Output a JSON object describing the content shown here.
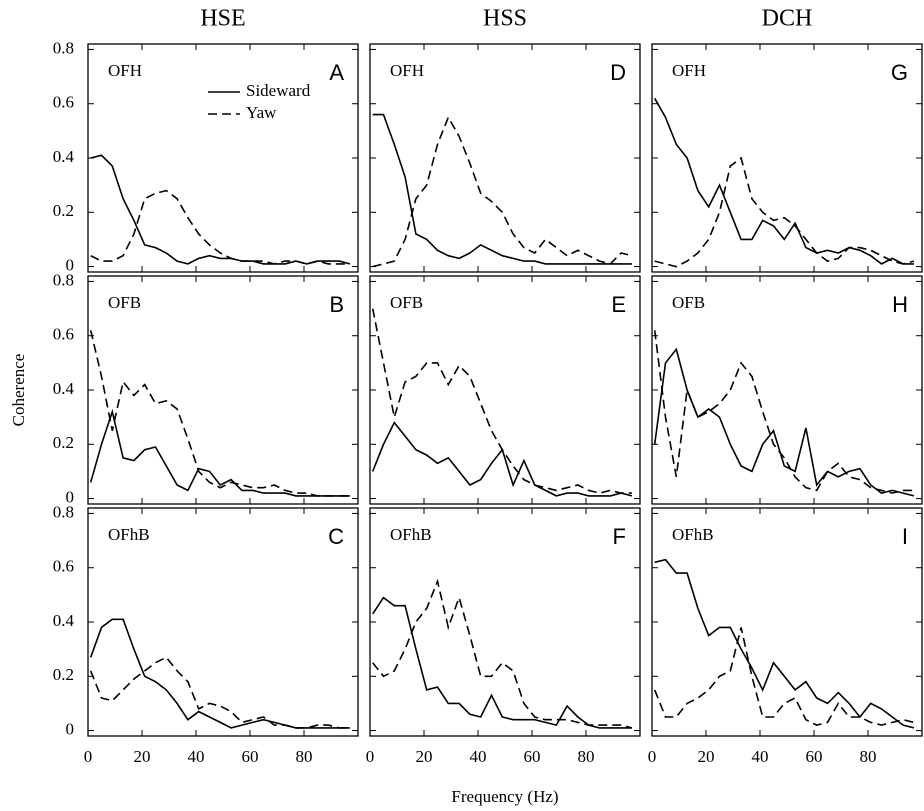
{
  "columns": [
    "HSE",
    "HSS",
    "DCH"
  ],
  "ylabel": "Coherence",
  "xlabel": "Frequency (Hz)",
  "chart_data": [
    {
      "type": "line",
      "label": "OFH",
      "panel": "A",
      "x": [
        1,
        5,
        9,
        13,
        17,
        21,
        25,
        29,
        33,
        37,
        41,
        45,
        49,
        53,
        57,
        61,
        65,
        69,
        73,
        77,
        81,
        85,
        89,
        93,
        97
      ],
      "xlim": [
        0,
        100
      ],
      "ylim": [
        -0.02,
        0.82
      ],
      "xticks": [
        0,
        20,
        40,
        60,
        80
      ],
      "yticks": [
        0,
        0.2,
        0.4,
        0.6,
        0.8
      ],
      "series": [
        {
          "name": "Sideward",
          "color": "#000000",
          "dash": "solid",
          "values": [
            0.4,
            0.41,
            0.37,
            0.25,
            0.17,
            0.08,
            0.07,
            0.05,
            0.02,
            0.01,
            0.03,
            0.04,
            0.03,
            0.03,
            0.02,
            0.02,
            0.01,
            0.01,
            0.01,
            0.02,
            0.01,
            0.02,
            0.02,
            0.02,
            0.01
          ]
        },
        {
          "name": "Yaw",
          "color": "#000000",
          "dash": "dashed",
          "values": [
            0.04,
            0.02,
            0.02,
            0.04,
            0.12,
            0.25,
            0.27,
            0.28,
            0.25,
            0.18,
            0.12,
            0.08,
            0.05,
            0.03,
            0.02,
            0.02,
            0.02,
            0.01,
            0.02,
            0.02,
            0.01,
            0.02,
            0.01,
            0.01,
            0.01
          ]
        }
      ]
    },
    {
      "type": "line",
      "label": "OFH",
      "panel": "D",
      "x": [
        1,
        5,
        9,
        13,
        17,
        21,
        25,
        29,
        33,
        37,
        41,
        45,
        49,
        53,
        57,
        61,
        65,
        69,
        73,
        77,
        81,
        85,
        89,
        93,
        97
      ],
      "xlim": [
        0,
        100
      ],
      "ylim": [
        -0.02,
        0.82
      ],
      "xticks": [
        0,
        20,
        40,
        60,
        80
      ],
      "yticks": [
        0,
        0.2,
        0.4,
        0.6,
        0.8
      ],
      "series": [
        {
          "color": "#000000",
          "dash": "solid",
          "values": [
            0.56,
            0.56,
            0.45,
            0.33,
            0.12,
            0.1,
            0.06,
            0.04,
            0.03,
            0.05,
            0.08,
            0.06,
            0.04,
            0.03,
            0.02,
            0.02,
            0.01,
            0.01,
            0.01,
            0.01,
            0.01,
            0.01,
            0.01,
            0.01,
            0.01
          ]
        },
        {
          "color": "#000000",
          "dash": "dashed",
          "values": [
            0.0,
            0.01,
            0.02,
            0.1,
            0.25,
            0.3,
            0.45,
            0.55,
            0.48,
            0.38,
            0.27,
            0.24,
            0.2,
            0.12,
            0.07,
            0.05,
            0.1,
            0.07,
            0.04,
            0.06,
            0.04,
            0.02,
            0.01,
            0.05,
            0.04
          ]
        }
      ]
    },
    {
      "type": "line",
      "label": "OFH",
      "panel": "G",
      "x": [
        1,
        5,
        9,
        13,
        17,
        21,
        25,
        29,
        33,
        37,
        41,
        45,
        49,
        53,
        57,
        61,
        65,
        69,
        73,
        77,
        81,
        85,
        89,
        93,
        97
      ],
      "xlim": [
        0,
        100
      ],
      "ylim": [
        -0.02,
        0.82
      ],
      "xticks": [
        0,
        20,
        40,
        60,
        80
      ],
      "yticks": [
        0,
        0.2,
        0.4,
        0.6,
        0.8
      ],
      "series": [
        {
          "color": "#000000",
          "dash": "solid",
          "values": [
            0.62,
            0.55,
            0.45,
            0.4,
            0.28,
            0.22,
            0.3,
            0.2,
            0.1,
            0.1,
            0.17,
            0.15,
            0.1,
            0.16,
            0.07,
            0.05,
            0.06,
            0.05,
            0.07,
            0.06,
            0.04,
            0.01,
            0.03,
            0.01,
            0.01
          ]
        },
        {
          "color": "#000000",
          "dash": "dashed",
          "values": [
            0.02,
            0.01,
            0.0,
            0.02,
            0.05,
            0.1,
            0.2,
            0.37,
            0.4,
            0.25,
            0.2,
            0.17,
            0.18,
            0.15,
            0.1,
            0.05,
            0.02,
            0.03,
            0.07,
            0.07,
            0.06,
            0.04,
            0.02,
            0.01,
            0.02
          ]
        }
      ]
    },
    {
      "type": "line",
      "label": "OFB",
      "panel": "B",
      "x": [
        1,
        5,
        9,
        13,
        17,
        21,
        25,
        29,
        33,
        37,
        41,
        45,
        49,
        53,
        57,
        61,
        65,
        69,
        73,
        77,
        81,
        85,
        89,
        93,
        97
      ],
      "xlim": [
        0,
        100
      ],
      "ylim": [
        -0.02,
        0.82
      ],
      "xticks": [
        0,
        20,
        40,
        60,
        80
      ],
      "yticks": [
        0,
        0.2,
        0.4,
        0.6,
        0.8
      ],
      "series": [
        {
          "color": "#000000",
          "dash": "solid",
          "values": [
            0.06,
            0.2,
            0.32,
            0.15,
            0.14,
            0.18,
            0.19,
            0.12,
            0.05,
            0.03,
            0.11,
            0.1,
            0.05,
            0.07,
            0.03,
            0.03,
            0.02,
            0.02,
            0.02,
            0.01,
            0.01,
            0.01,
            0.01,
            0.01,
            0.01
          ]
        },
        {
          "color": "#000000",
          "dash": "dashed",
          "values": [
            0.62,
            0.45,
            0.25,
            0.43,
            0.38,
            0.42,
            0.35,
            0.36,
            0.33,
            0.22,
            0.1,
            0.06,
            0.04,
            0.06,
            0.05,
            0.04,
            0.04,
            0.05,
            0.03,
            0.02,
            0.02,
            0.01,
            0.01,
            0.01,
            0.01
          ]
        }
      ]
    },
    {
      "type": "line",
      "label": "OFB",
      "panel": "E",
      "x": [
        1,
        5,
        9,
        13,
        17,
        21,
        25,
        29,
        33,
        37,
        41,
        45,
        49,
        53,
        57,
        61,
        65,
        69,
        73,
        77,
        81,
        85,
        89,
        93,
        97
      ],
      "xlim": [
        0,
        100
      ],
      "ylim": [
        -0.02,
        0.82
      ],
      "xticks": [
        0,
        20,
        40,
        60,
        80
      ],
      "yticks": [
        0,
        0.2,
        0.4,
        0.6,
        0.8
      ],
      "series": [
        {
          "color": "#000000",
          "dash": "solid",
          "values": [
            0.1,
            0.2,
            0.28,
            0.23,
            0.18,
            0.16,
            0.13,
            0.15,
            0.1,
            0.05,
            0.07,
            0.13,
            0.18,
            0.05,
            0.14,
            0.05,
            0.03,
            0.01,
            0.02,
            0.02,
            0.01,
            0.01,
            0.01,
            0.02,
            0.01
          ]
        },
        {
          "color": "#000000",
          "dash": "dashed",
          "values": [
            0.7,
            0.5,
            0.3,
            0.43,
            0.45,
            0.5,
            0.5,
            0.42,
            0.49,
            0.45,
            0.35,
            0.25,
            0.18,
            0.12,
            0.07,
            0.05,
            0.04,
            0.03,
            0.04,
            0.05,
            0.03,
            0.02,
            0.03,
            0.02,
            0.02
          ]
        }
      ]
    },
    {
      "type": "line",
      "label": "OFB",
      "panel": "H",
      "x": [
        1,
        5,
        9,
        13,
        17,
        21,
        25,
        29,
        33,
        37,
        41,
        45,
        49,
        53,
        57,
        61,
        65,
        69,
        73,
        77,
        81,
        85,
        89,
        93,
        97
      ],
      "xlim": [
        0,
        100
      ],
      "ylim": [
        -0.02,
        0.82
      ],
      "xticks": [
        0,
        20,
        40,
        60,
        80
      ],
      "yticks": [
        0,
        0.2,
        0.4,
        0.6,
        0.8
      ],
      "series": [
        {
          "color": "#000000",
          "dash": "solid",
          "values": [
            0.2,
            0.5,
            0.55,
            0.4,
            0.3,
            0.33,
            0.3,
            0.2,
            0.12,
            0.1,
            0.2,
            0.25,
            0.12,
            0.1,
            0.26,
            0.05,
            0.1,
            0.08,
            0.1,
            0.11,
            0.05,
            0.02,
            0.03,
            0.02,
            0.01
          ]
        },
        {
          "color": "#000000",
          "dash": "dashed",
          "values": [
            0.62,
            0.3,
            0.08,
            0.4,
            0.3,
            0.32,
            0.35,
            0.4,
            0.5,
            0.45,
            0.32,
            0.2,
            0.15,
            0.08,
            0.04,
            0.03,
            0.1,
            0.13,
            0.08,
            0.07,
            0.04,
            0.03,
            0.02,
            0.03,
            0.03
          ]
        }
      ]
    },
    {
      "type": "line",
      "label": "OFhB",
      "panel": "C",
      "x": [
        1,
        5,
        9,
        13,
        17,
        21,
        25,
        29,
        33,
        37,
        41,
        45,
        49,
        53,
        57,
        61,
        65,
        69,
        73,
        77,
        81,
        85,
        89,
        93,
        97
      ],
      "xlim": [
        0,
        100
      ],
      "ylim": [
        -0.02,
        0.82
      ],
      "xticks": [
        0,
        20,
        40,
        60,
        80
      ],
      "yticks": [
        0,
        0.2,
        0.4,
        0.6,
        0.8
      ],
      "series": [
        {
          "color": "#000000",
          "dash": "solid",
          "values": [
            0.27,
            0.38,
            0.41,
            0.41,
            0.3,
            0.2,
            0.18,
            0.15,
            0.1,
            0.04,
            0.07,
            0.05,
            0.03,
            0.01,
            0.02,
            0.03,
            0.04,
            0.03,
            0.02,
            0.01,
            0.01,
            0.01,
            0.01,
            0.01,
            0.01
          ]
        },
        {
          "color": "#000000",
          "dash": "dashed",
          "values": [
            0.22,
            0.12,
            0.11,
            0.15,
            0.19,
            0.22,
            0.25,
            0.27,
            0.22,
            0.18,
            0.08,
            0.1,
            0.09,
            0.07,
            0.03,
            0.04,
            0.05,
            0.02,
            0.02,
            0.01,
            0.01,
            0.02,
            0.02,
            0.01,
            0.01
          ]
        }
      ]
    },
    {
      "type": "line",
      "label": "OFhB",
      "panel": "F",
      "x": [
        1,
        5,
        9,
        13,
        17,
        21,
        25,
        29,
        33,
        37,
        41,
        45,
        49,
        53,
        57,
        61,
        65,
        69,
        73,
        77,
        81,
        85,
        89,
        93,
        97
      ],
      "xlim": [
        0,
        100
      ],
      "ylim": [
        -0.02,
        0.82
      ],
      "xticks": [
        0,
        20,
        40,
        60,
        80
      ],
      "yticks": [
        0,
        0.2,
        0.4,
        0.6,
        0.8
      ],
      "series": [
        {
          "color": "#000000",
          "dash": "solid",
          "values": [
            0.43,
            0.49,
            0.46,
            0.46,
            0.3,
            0.15,
            0.16,
            0.1,
            0.1,
            0.06,
            0.05,
            0.13,
            0.05,
            0.04,
            0.04,
            0.04,
            0.03,
            0.02,
            0.09,
            0.05,
            0.02,
            0.01,
            0.01,
            0.01,
            0.01
          ]
        },
        {
          "color": "#000000",
          "dash": "dashed",
          "values": [
            0.25,
            0.2,
            0.22,
            0.3,
            0.4,
            0.45,
            0.55,
            0.38,
            0.49,
            0.35,
            0.2,
            0.2,
            0.25,
            0.22,
            0.1,
            0.05,
            0.04,
            0.04,
            0.04,
            0.03,
            0.02,
            0.02,
            0.02,
            0.02,
            0.01
          ]
        }
      ]
    },
    {
      "type": "line",
      "label": "OFhB",
      "panel": "I",
      "x": [
        1,
        5,
        9,
        13,
        17,
        21,
        25,
        29,
        33,
        37,
        41,
        45,
        49,
        53,
        57,
        61,
        65,
        69,
        73,
        77,
        81,
        85,
        89,
        93,
        97
      ],
      "xlim": [
        0,
        100
      ],
      "ylim": [
        -0.02,
        0.82
      ],
      "xticks": [
        0,
        20,
        40,
        60,
        80
      ],
      "yticks": [
        0,
        0.2,
        0.4,
        0.6,
        0.8
      ],
      "series": [
        {
          "color": "#000000",
          "dash": "solid",
          "values": [
            0.62,
            0.63,
            0.58,
            0.58,
            0.45,
            0.35,
            0.38,
            0.38,
            0.3,
            0.23,
            0.15,
            0.25,
            0.2,
            0.15,
            0.18,
            0.12,
            0.1,
            0.14,
            0.1,
            0.05,
            0.1,
            0.08,
            0.05,
            0.02,
            0.01
          ]
        },
        {
          "color": "#000000",
          "dash": "dashed",
          "values": [
            0.15,
            0.05,
            0.05,
            0.1,
            0.12,
            0.15,
            0.2,
            0.22,
            0.38,
            0.2,
            0.05,
            0.05,
            0.1,
            0.12,
            0.04,
            0.02,
            0.03,
            0.1,
            0.05,
            0.05,
            0.03,
            0.02,
            0.03,
            0.04,
            0.03
          ]
        }
      ]
    }
  ]
}
